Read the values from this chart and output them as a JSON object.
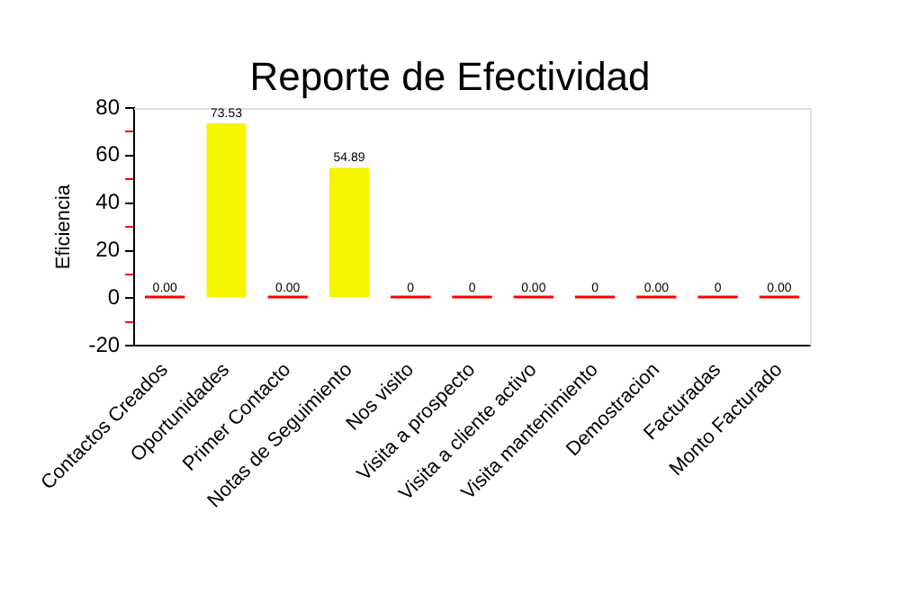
{
  "chart_data": {
    "type": "bar",
    "title": "Reporte de Efectividad",
    "ylabel": "Eficiencia",
    "categories": [
      "Contactos Creados",
      "Oportunidades",
      "Primer Contacto",
      "Notas de Seguimiento",
      "Nos visito",
      "Visita a prospecto",
      "Visita a cliente activo",
      "Visita mantenimiento",
      "Demostracion",
      "Facturadas",
      "Monto Facturado"
    ],
    "values": [
      0,
      73.53,
      0,
      54.89,
      0,
      0,
      0,
      0,
      0,
      0,
      0
    ],
    "value_labels": [
      "0.00",
      "73.53",
      "0.00",
      "54.89",
      "0",
      "0",
      "0.00",
      "0",
      "0.00",
      "0",
      "0.00"
    ],
    "colors": [
      "#ff0000",
      "#f5f500",
      "#ff0000",
      "#f5f500",
      "#ff0000",
      "#ff0000",
      "#ff0000",
      "#ff0000",
      "#ff0000",
      "#ff0000",
      "#ff0000"
    ],
    "ylim": [
      -20,
      80
    ],
    "yticks": [
      -20,
      {
        "value": -10,
        "label": null
      },
      0,
      {
        "value": 10,
        "label": null
      },
      20,
      {
        "value": 30,
        "label": null
      },
      40,
      {
        "value": 50,
        "label": null
      },
      60,
      {
        "value": 70,
        "label": null
      },
      80
    ],
    "grid": false,
    "legend": false
  }
}
